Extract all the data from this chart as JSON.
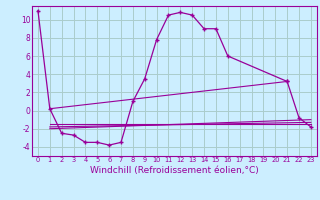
{
  "bg_color": "#cceeff",
  "grid_color": "#aacccc",
  "line_color": "#990099",
  "marker": "+",
  "xlabel": "Windchill (Refroidissement éolien,°C)",
  "xlabel_fontsize": 6.5,
  "ylim": [
    -5,
    11.5
  ],
  "xlim": [
    -0.5,
    23.5
  ],
  "yticks": [
    -4,
    -2,
    0,
    2,
    4,
    6,
    8,
    10
  ],
  "xticks": [
    0,
    1,
    2,
    3,
    4,
    5,
    6,
    7,
    8,
    9,
    10,
    11,
    12,
    13,
    14,
    15,
    16,
    17,
    18,
    19,
    20,
    21,
    22,
    23
  ],
  "series0": {
    "x": [
      0,
      1,
      2,
      3,
      4,
      5,
      6,
      7,
      8,
      9,
      10,
      11,
      12,
      13,
      14,
      15,
      16,
      21
    ],
    "y": [
      11,
      0.2,
      -2.5,
      -2.7,
      -3.5,
      -3.5,
      -3.8,
      -3.5,
      1.0,
      3.5,
      7.8,
      10.5,
      10.8,
      10.5,
      9.0,
      9.0,
      6.0,
      3.2
    ]
  },
  "series1": {
    "x": [
      21,
      22,
      23
    ],
    "y": [
      3.2,
      -0.8,
      -1.8
    ]
  },
  "trend_lines": [
    {
      "x": [
        1,
        21
      ],
      "y": [
        0.2,
        3.2
      ]
    },
    {
      "x": [
        1,
        23
      ],
      "y": [
        -1.5,
        -1.5
      ]
    },
    {
      "x": [
        1,
        23
      ],
      "y": [
        -1.8,
        -1.3
      ]
    },
    {
      "x": [
        1,
        23
      ],
      "y": [
        -2.0,
        -1.0
      ]
    }
  ]
}
